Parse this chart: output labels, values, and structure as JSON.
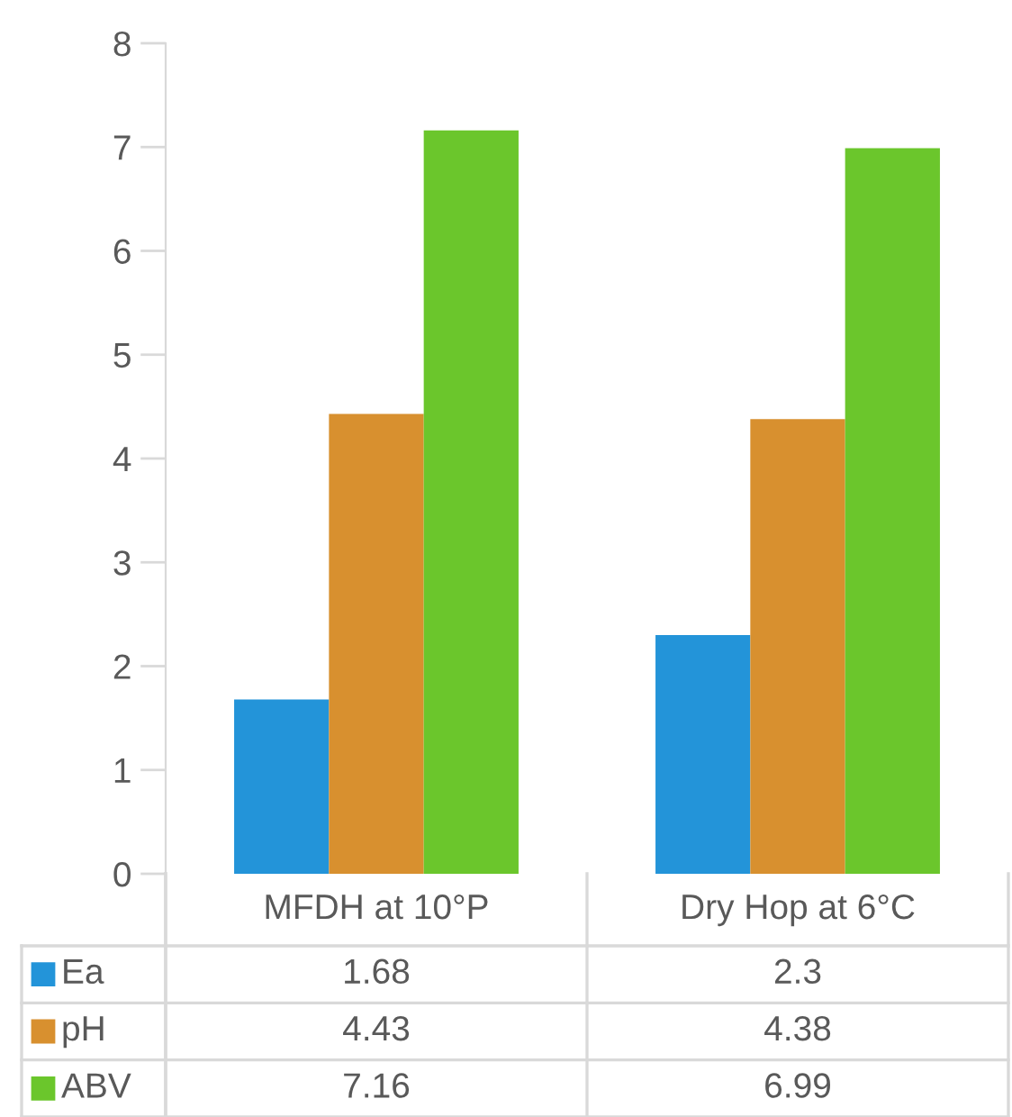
{
  "chart_data": {
    "type": "bar",
    "categories": [
      "MFDH at 10°P",
      "Dry Hop at 6°C"
    ],
    "series": [
      {
        "name": "Ea",
        "color": "#2394d9",
        "values": [
          1.68,
          2.3
        ]
      },
      {
        "name": "pH",
        "color": "#d8902f",
        "values": [
          4.43,
          4.38
        ]
      },
      {
        "name": "ABV",
        "color": "#6bc62c",
        "values": [
          7.16,
          6.99
        ]
      }
    ],
    "ylim": [
      0,
      8
    ],
    "yticks": [
      0,
      1,
      2,
      3,
      4,
      5,
      6,
      7,
      8
    ],
    "grid": false,
    "legend": "bottom",
    "data_labels": true
  }
}
